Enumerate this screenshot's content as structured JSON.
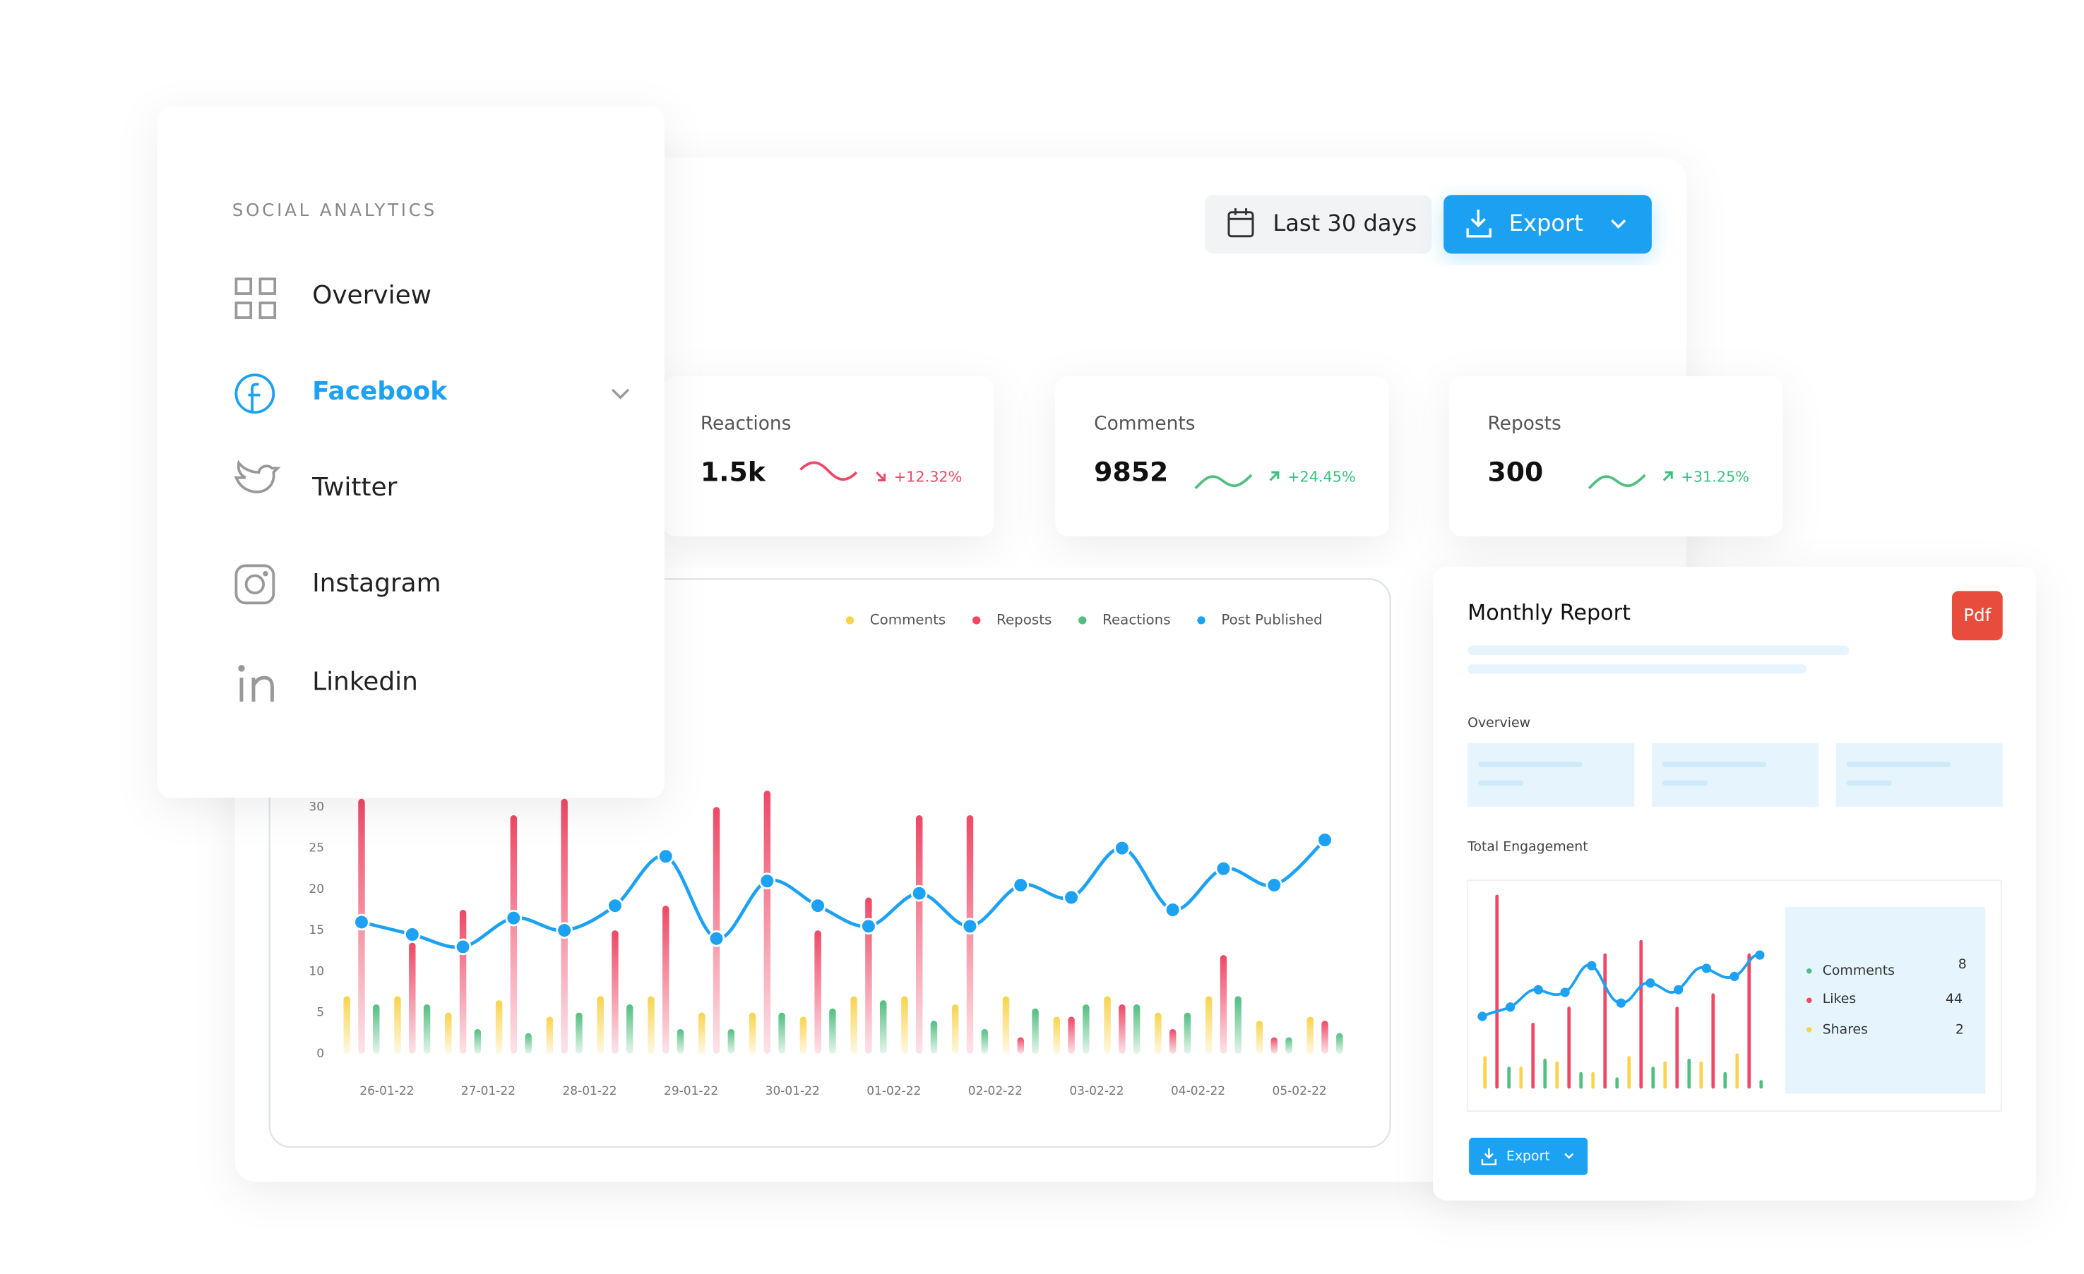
{
  "sidebar": {
    "title": "SOCIAL ANALYTICS",
    "items": [
      "Overview",
      "Facebook",
      "Twitter",
      "Instagram",
      "Linkedin"
    ]
  },
  "toolbar": {
    "date_range": "Last 30 days",
    "export": "Export"
  },
  "stats": [
    {
      "label": "Reactions",
      "value": "1.5k",
      "change": "+12.32%"
    },
    {
      "label": "Comments",
      "value": "9852",
      "change": "+24.45%"
    },
    {
      "label": "Reposts",
      "value": "300",
      "change": "+31.25%"
    }
  ],
  "chart_data": {
    "type": "bar",
    "categories": [
      "26-01-22",
      null,
      "27-01-22",
      null,
      "28-01-22",
      null,
      "29-01-22",
      null,
      "30-01-22",
      null,
      "01-02-22",
      null,
      "02-02-22",
      null,
      "03-02-22",
      null,
      "04-02-22",
      null,
      "05-02-22",
      null
    ],
    "series": [
      {
        "name": "Comments",
        "color": "#f9d34c",
        "values": [
          7,
          7,
          5,
          6.5,
          4.5,
          7,
          7,
          5,
          5,
          4.5,
          7,
          7,
          6,
          7,
          4.5,
          7,
          5,
          7,
          4,
          4.5
        ]
      },
      {
        "name": "Reposts",
        "color": "#ee4866",
        "values": [
          31,
          13.5,
          17.5,
          29,
          31,
          15,
          18,
          30,
          32,
          15,
          19,
          29,
          29,
          2,
          4.5,
          6,
          3,
          12,
          2,
          4
        ]
      },
      {
        "name": "Reactions",
        "color": "#52be80",
        "values": [
          6,
          6,
          3,
          2.5,
          5,
          6,
          3,
          3,
          5,
          5.5,
          6.5,
          4,
          3,
          5.5,
          6,
          6,
          5,
          7,
          2,
          2.5
        ]
      },
      {
        "name": "Post Published",
        "color": "#1da1f2",
        "type": "line",
        "values": [
          16,
          14.5,
          13,
          16.5,
          15,
          18,
          24,
          14,
          21,
          18,
          15.5,
          19.5,
          15.5,
          20.5,
          19,
          25,
          17.5,
          22.5,
          20.5,
          26
        ]
      }
    ],
    "ylim": [
      0,
      30
    ],
    "yticks": [
      0,
      5,
      10,
      15,
      20,
      25,
      30
    ]
  },
  "report": {
    "title": "Monthly Report",
    "badge": "Pdf",
    "overview": "Overview",
    "engagement": "Total Engagement",
    "legend": [
      {
        "name": "Comments",
        "value": 8
      },
      {
        "name": "Likes",
        "value": 44
      },
      {
        "name": "Shares",
        "value": 2
      }
    ],
    "export": "Export"
  }
}
